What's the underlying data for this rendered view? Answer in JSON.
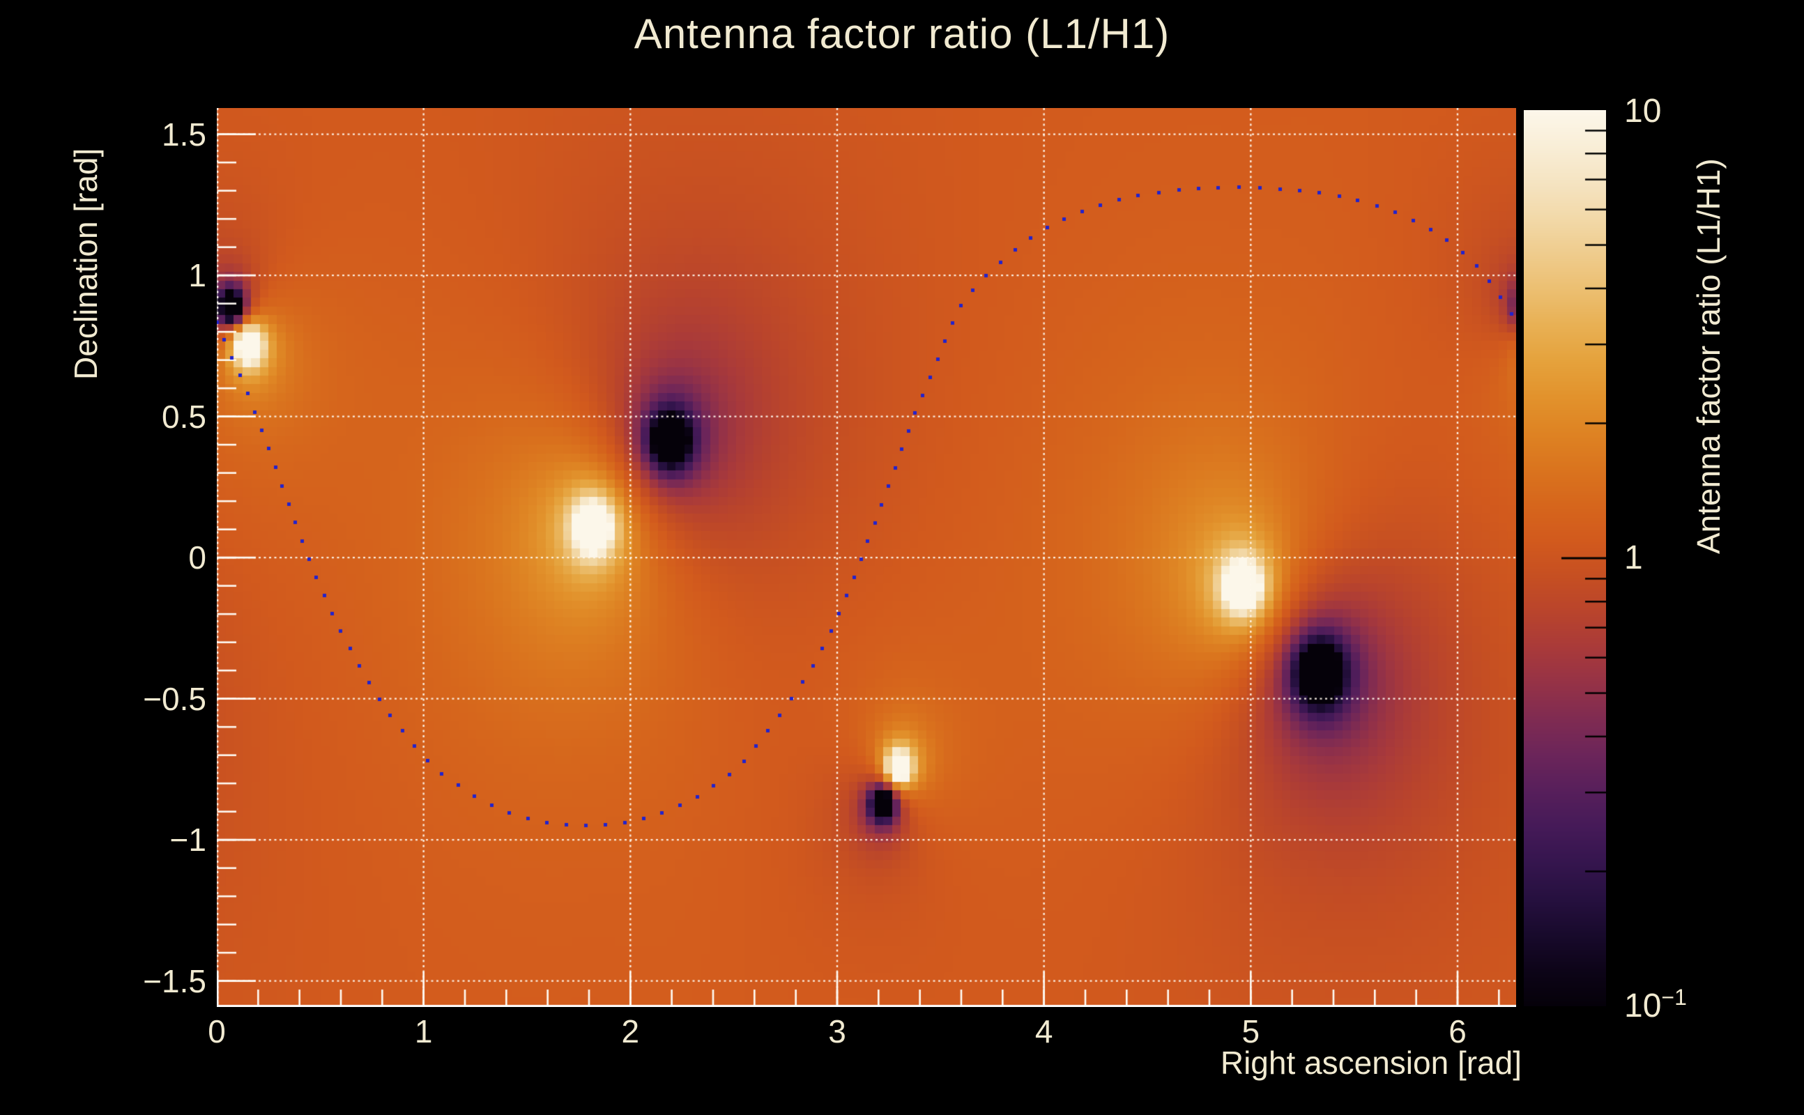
{
  "title": "Antenna factor ratio (L1/H1)",
  "axes": {
    "x": {
      "label": "Right ascension [rad]",
      "min": 0,
      "max": 6.2832,
      "minor_step": 0.2,
      "major_ticks": [
        {
          "v": 0,
          "label": "0"
        },
        {
          "v": 1,
          "label": "1"
        },
        {
          "v": 2,
          "label": "2"
        },
        {
          "v": 3,
          "label": "3"
        },
        {
          "v": 4,
          "label": "4"
        },
        {
          "v": 5,
          "label": "5"
        },
        {
          "v": 6,
          "label": "6"
        }
      ]
    },
    "y": {
      "label": "Declination [rad]",
      "min": -1.592,
      "max": 1.593,
      "minor_step": 0.1,
      "major_ticks": [
        {
          "v": 1.5,
          "label": "1.5"
        },
        {
          "v": 1,
          "label": "1"
        },
        {
          "v": 0.5,
          "label": "0.5"
        },
        {
          "v": 0,
          "label": "0"
        },
        {
          "v": -0.5,
          "label": "−0.5"
        },
        {
          "v": -1,
          "label": "−1"
        },
        {
          "v": -1.5,
          "label": "−1.5"
        }
      ]
    }
  },
  "colorbar": {
    "label": "Antenna factor ratio (L1/H1)",
    "scale": "log",
    "min": 0.1,
    "max": 10,
    "top_label": "10",
    "mid_label": "1",
    "bottom_label_base": "10",
    "bottom_label_exp": "−1",
    "minor_ticks": [
      0.2,
      0.3,
      0.4,
      0.5,
      0.6,
      0.7,
      0.8,
      0.9,
      2,
      3,
      4,
      5,
      6,
      7,
      8,
      9
    ],
    "major_ticks": [
      1
    ]
  },
  "chart_data": {
    "type": "heatmap",
    "title": "Antenna factor ratio (L1/H1)",
    "xlabel": "Right ascension [rad]",
    "ylabel": "Declination [rad]",
    "x_range": [
      0,
      6.2832
    ],
    "y_range": [
      -1.592,
      1.593
    ],
    "value_scale": "log10",
    "value_range": [
      0.1,
      10
    ],
    "background_value_log10": 0.05,
    "grid": {
      "x_values": [
        0,
        1,
        2,
        3,
        4,
        5,
        6
      ],
      "y_values": [
        -1.5,
        -1,
        -0.5,
        0,
        0.5,
        1,
        1.5
      ],
      "style": "dotted-white"
    },
    "bright_spots": [
      {
        "ra": 0.155,
        "dec": 0.752,
        "core_sigma": 0.05,
        "core_amp": 2.4,
        "halo_sigma": 0.4,
        "halo_amp": 0.36
      },
      {
        "ra": 1.821,
        "dec": 0.107,
        "core_sigma": 0.06,
        "core_amp": 2.7,
        "halo_sigma": 0.65,
        "halo_amp": 0.52
      },
      {
        "ra": 4.963,
        "dec": -0.102,
        "core_sigma": 0.06,
        "core_amp": 2.7,
        "halo_sigma": 0.65,
        "halo_amp": 0.52
      },
      {
        "ra": 3.301,
        "dec": -0.744,
        "core_sigma": 0.045,
        "core_amp": 2.3,
        "halo_sigma": 0.32,
        "halo_amp": 0.26
      }
    ],
    "dark_spots": [
      {
        "ra": 0.07,
        "dec": 0.888,
        "core_sigma": 0.045,
        "core_amp": 2.4,
        "halo_sigma": 0.4,
        "halo_amp": 0.34
      },
      {
        "ra": 2.193,
        "dec": 0.416,
        "core_sigma": 0.065,
        "core_amp": 2.6,
        "halo_sigma": 0.7,
        "halo_amp": 0.5
      },
      {
        "ra": 5.334,
        "dec": -0.409,
        "core_sigma": 0.075,
        "core_amp": 2.7,
        "halo_sigma": 0.68,
        "halo_amp": 0.52
      },
      {
        "ra": 3.223,
        "dec": -0.873,
        "core_sigma": 0.045,
        "core_amp": 2.3,
        "halo_sigma": 0.32,
        "halo_amp": 0.25
      }
    ],
    "curve": {
      "marker": "square-dot",
      "color": "#2222cc",
      "dot_size_px": 5,
      "dot_spacing_px": 27.5,
      "points": [
        [
          0.0,
          0.836
        ],
        [
          0.034,
          0.777
        ],
        [
          0.068,
          0.715
        ],
        [
          0.105,
          0.66
        ],
        [
          0.139,
          0.604
        ],
        [
          0.169,
          0.544
        ],
        [
          0.199,
          0.488
        ],
        [
          0.23,
          0.428
        ],
        [
          0.26,
          0.372
        ],
        [
          0.287,
          0.315
        ],
        [
          0.314,
          0.256
        ],
        [
          0.345,
          0.199
        ],
        [
          0.372,
          0.142
        ],
        [
          0.399,
          0.083
        ],
        [
          0.429,
          0.031
        ],
        [
          0.459,
          -0.028
        ],
        [
          0.49,
          -0.085
        ],
        [
          0.524,
          -0.142
        ],
        [
          0.554,
          -0.191
        ],
        [
          0.59,
          -0.25
        ],
        [
          0.63,
          -0.3
        ],
        [
          0.67,
          -0.36
        ],
        [
          0.71,
          -0.41
        ],
        [
          0.75,
          -0.46
        ],
        [
          0.794,
          -0.51
        ],
        [
          0.843,
          -0.564
        ],
        [
          0.897,
          -0.614
        ],
        [
          0.952,
          -0.666
        ],
        [
          1.014,
          -0.715
        ],
        [
          1.08,
          -0.761
        ],
        [
          1.151,
          -0.798
        ],
        [
          1.228,
          -0.838
        ],
        [
          1.307,
          -0.87
        ],
        [
          1.395,
          -0.898
        ],
        [
          1.49,
          -0.922
        ],
        [
          1.585,
          -0.937
        ],
        [
          1.683,
          -0.947
        ],
        [
          1.784,
          -0.95
        ],
        [
          1.886,
          -0.947
        ],
        [
          1.986,
          -0.938
        ],
        [
          2.081,
          -0.922
        ],
        [
          2.172,
          -0.898
        ],
        [
          2.261,
          -0.87
        ],
        [
          2.344,
          -0.838
        ],
        [
          2.42,
          -0.798
        ],
        [
          2.492,
          -0.761
        ],
        [
          2.557,
          -0.715
        ],
        [
          2.61,
          -0.666
        ],
        [
          2.665,
          -0.614
        ],
        [
          2.719,
          -0.564
        ],
        [
          2.768,
          -0.51
        ],
        [
          2.862,
          -0.41
        ],
        [
          2.942,
          -0.3
        ],
        [
          3.005,
          -0.205
        ],
        [
          3.055,
          -0.115
        ],
        [
          3.106,
          -0.028
        ],
        [
          3.133,
          0.031
        ],
        [
          3.164,
          0.086
        ],
        [
          3.194,
          0.143
        ],
        [
          3.221,
          0.199
        ],
        [
          3.248,
          0.256
        ],
        [
          3.279,
          0.315
        ],
        [
          3.306,
          0.372
        ],
        [
          3.336,
          0.428
        ],
        [
          3.363,
          0.488
        ],
        [
          3.397,
          0.545
        ],
        [
          3.427,
          0.605
        ],
        [
          3.462,
          0.66
        ],
        [
          3.494,
          0.715
        ],
        [
          3.528,
          0.777
        ],
        [
          3.562,
          0.836
        ],
        [
          3.6,
          0.893
        ],
        [
          3.66,
          0.95
        ],
        [
          3.73,
          1.005
        ],
        [
          3.81,
          1.058
        ],
        [
          3.885,
          1.103
        ],
        [
          3.976,
          1.152
        ],
        [
          4.088,
          1.196
        ],
        [
          4.228,
          1.238
        ],
        [
          4.393,
          1.273
        ],
        [
          4.59,
          1.297
        ],
        [
          4.814,
          1.31
        ],
        [
          5.054,
          1.31
        ],
        [
          5.28,
          1.297
        ],
        [
          5.473,
          1.273
        ],
        [
          5.642,
          1.238
        ],
        [
          5.78,
          1.196
        ],
        [
          5.892,
          1.152
        ],
        [
          5.986,
          1.105
        ],
        [
          6.065,
          1.053
        ],
        [
          6.134,
          0.999
        ],
        [
          6.186,
          0.947
        ],
        [
          6.24,
          0.888
        ],
        [
          6.284,
          0.836
        ]
      ]
    },
    "colormap": [
      [
        0.0,
        "#050109"
      ],
      [
        0.04,
        "#0d0418"
      ],
      [
        0.08,
        "#180a2c"
      ],
      [
        0.12,
        "#26103f"
      ],
      [
        0.16,
        "#35154e"
      ],
      [
        0.2,
        "#451a58"
      ],
      [
        0.24,
        "#571f5b"
      ],
      [
        0.28,
        "#6b255a"
      ],
      [
        0.32,
        "#7f2b52"
      ],
      [
        0.36,
        "#953247"
      ],
      [
        0.4,
        "#a93a3a"
      ],
      [
        0.44,
        "#b9442c"
      ],
      [
        0.48,
        "#c64f22"
      ],
      [
        0.52,
        "#d25a1d"
      ],
      [
        0.56,
        "#d6661c"
      ],
      [
        0.6,
        "#da741e"
      ],
      [
        0.64,
        "#de8323"
      ],
      [
        0.68,
        "#e2922c"
      ],
      [
        0.72,
        "#e5a23c"
      ],
      [
        0.76,
        "#e8b054"
      ],
      [
        0.8,
        "#ecbf71"
      ],
      [
        0.84,
        "#efcc8d"
      ],
      [
        0.88,
        "#f2d9a9"
      ],
      [
        0.92,
        "#f5e4c2"
      ],
      [
        0.96,
        "#f9eed7"
      ],
      [
        1.0,
        "#fcf7ea"
      ]
    ],
    "style": {
      "grid_color": "#fff9ee",
      "tick_color": "#fffcf5",
      "text_color": "#f1ead1",
      "background": "#000000",
      "cells_x": 150,
      "cells_y": 104
    }
  }
}
